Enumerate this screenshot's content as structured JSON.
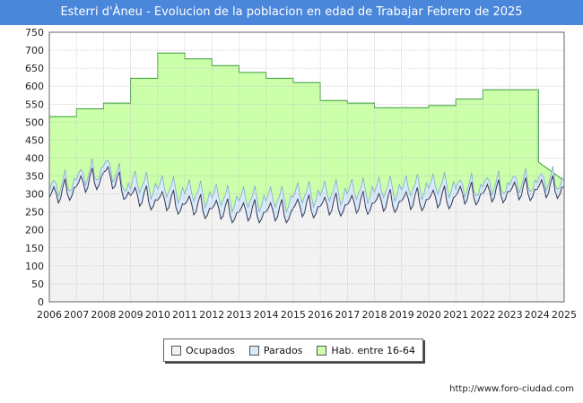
{
  "chart_data": {
    "type": "area",
    "title": "Esterri d'Àneu - Evolucion de la poblacion en edad de Trabajar Febrero de 2025",
    "xlabel": "",
    "ylabel": "",
    "ylim": [
      0,
      750
    ],
    "yticks": [
      "0",
      "50",
      "100",
      "150",
      "200",
      "250",
      "300",
      "350",
      "400",
      "450",
      "500",
      "550",
      "600",
      "650",
      "700",
      "750"
    ],
    "xticks": [
      "2006",
      "2007",
      "2008",
      "2009",
      "2010",
      "2011",
      "2012",
      "2013",
      "2014",
      "2015",
      "2016",
      "2017",
      "2018",
      "2019",
      "2020",
      "2021",
      "2022",
      "2023",
      "2024",
      "2025"
    ],
    "grid": true,
    "series": [
      {
        "name": "Hab. entre 16-64",
        "color": "#ccffaa",
        "values_by_year": [
          515,
          537,
          553,
          622,
          692,
          676,
          657,
          638,
          622,
          610,
          560,
          553,
          540,
          540,
          546,
          564,
          590,
          590,
          389
        ]
      },
      {
        "name": "Parados",
        "color": "#d8eaf8",
        "note": "upper edge of blue band = Ocupados + Parados"
      },
      {
        "name": "Ocupados",
        "color": "#f2f2f2",
        "note": "monthly series drawn as dark line"
      }
    ]
  },
  "legend": {
    "ocupados": "Ocupados",
    "parados": "Parados",
    "hab": "Hab. entre 16-64"
  },
  "source_url": "http://www.foro-ciudad.com",
  "colors": {
    "title_bg": "#4a86d9",
    "hab": "#ccffaa",
    "parados": "#d8eaf8",
    "ocupados": "#f2f2f2"
  }
}
